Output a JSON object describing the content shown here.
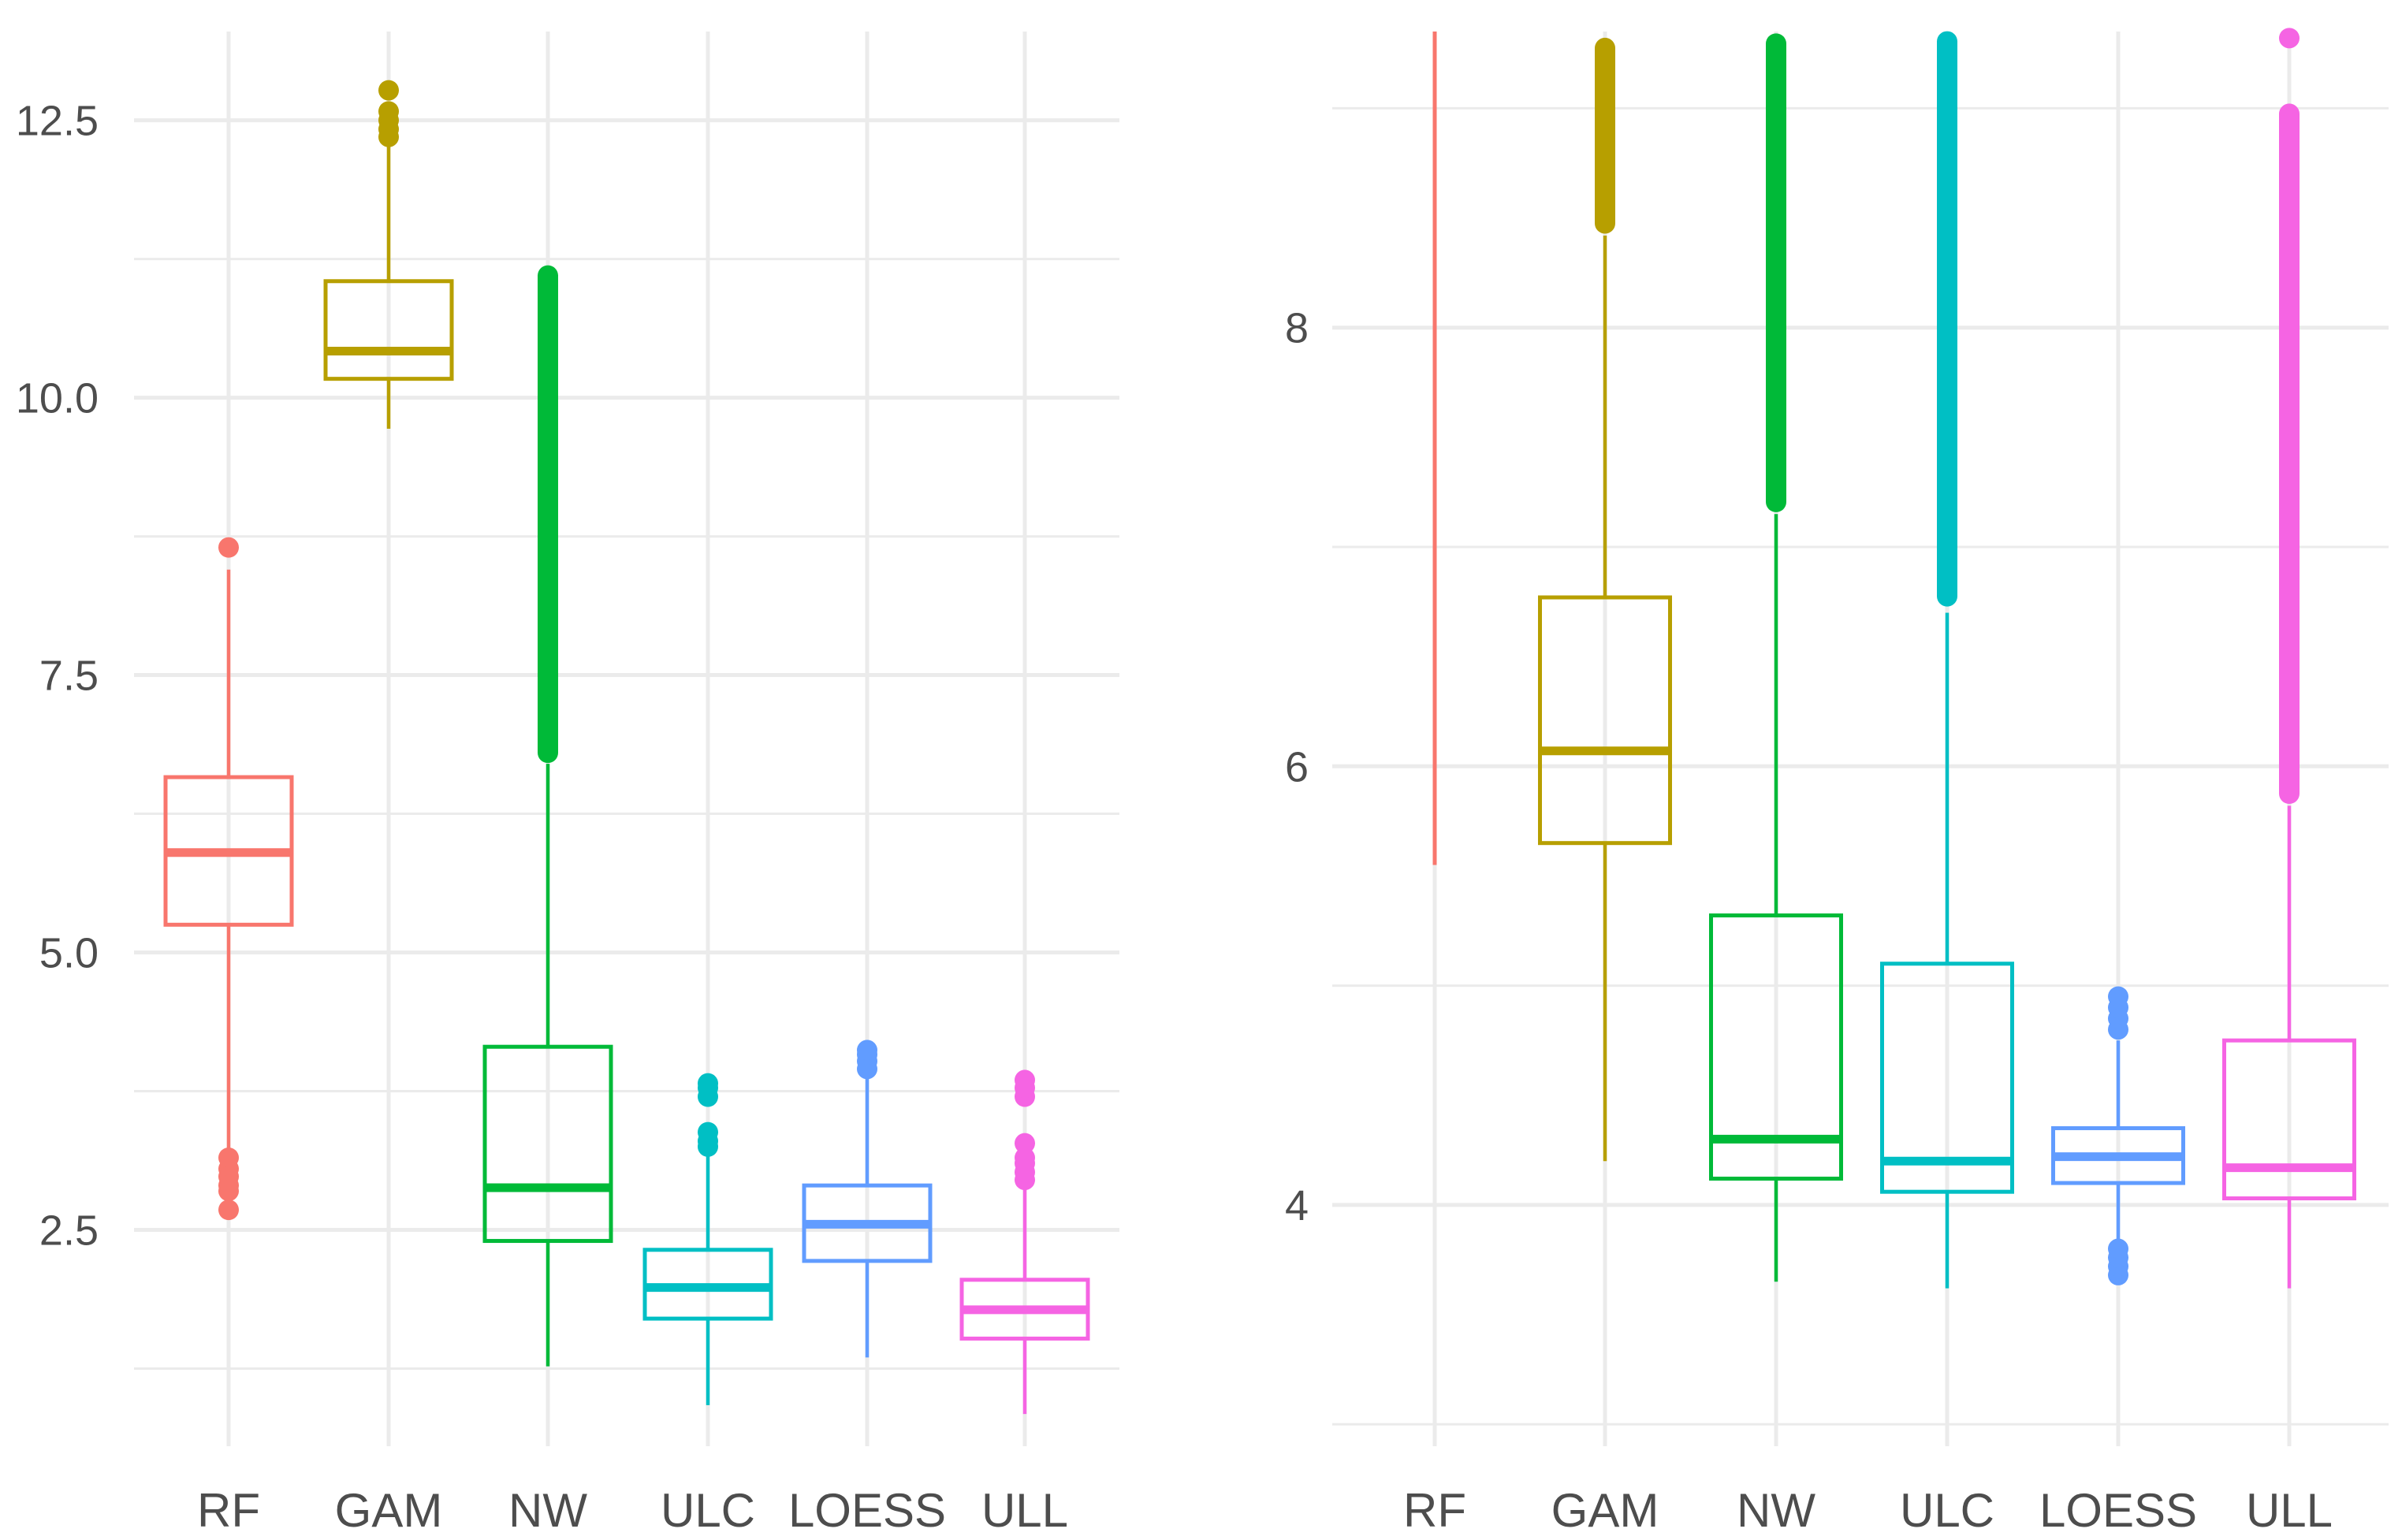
{
  "chart_data": [
    {
      "type": "boxplot",
      "panel": "left",
      "title": "",
      "xlabel": "",
      "ylabel": "",
      "categories": [
        "RF",
        "GAM",
        "NW",
        "ULC",
        "LOESS",
        "ULL"
      ],
      "colors": [
        "#F8766D",
        "#B79F00",
        "#00BA38",
        "#00BFC4",
        "#619CFF",
        "#F564E3"
      ],
      "ylim": [
        0.55,
        13.3
      ],
      "yticks": [
        2.5,
        5.0,
        7.5,
        10.0,
        12.5
      ],
      "ytick_labels": [
        "2.5",
        "5.0",
        "7.5",
        "10.0",
        "12.5"
      ],
      "y_minor_gridlines": [
        1.25,
        3.75,
        6.25,
        8.75,
        11.25
      ],
      "grid": true,
      "boxes": [
        {
          "name": "RF",
          "whisker_low": 3.2,
          "q1": 5.25,
          "median": 5.9,
          "q3": 6.58,
          "whisker_high": 8.45,
          "outliers": [
            8.65,
            3.15,
            3.05,
            2.98,
            2.9,
            2.85,
            2.68
          ]
        },
        {
          "name": "GAM",
          "whisker_low": 9.72,
          "q1": 10.17,
          "median": 10.42,
          "q3": 11.05,
          "whisker_high": 12.3,
          "outliers": [
            12.35,
            12.42,
            12.5,
            12.58,
            12.77
          ]
        },
        {
          "name": "NW",
          "whisker_low": 1.27,
          "q1": 2.4,
          "median": 2.88,
          "q3": 4.15,
          "whisker_high": 6.7,
          "outliers_range": [
            6.75,
            11.15
          ]
        },
        {
          "name": "ULC",
          "whisker_low": 0.92,
          "q1": 1.7,
          "median": 1.98,
          "q3": 2.32,
          "whisker_high": 3.2,
          "outliers": [
            3.25,
            3.3,
            3.38,
            3.7,
            3.78,
            3.82
          ]
        },
        {
          "name": "LOESS",
          "whisker_low": 1.35,
          "q1": 2.22,
          "median": 2.55,
          "q3": 2.9,
          "whisker_high": 3.9,
          "outliers": [
            3.95,
            4.02,
            4.08,
            4.12
          ]
        },
        {
          "name": "ULL",
          "whisker_low": 0.84,
          "q1": 1.52,
          "median": 1.78,
          "q3": 2.05,
          "whisker_high": 2.88,
          "outliers": [
            2.95,
            3.02,
            3.1,
            3.15,
            3.28,
            3.7,
            3.78,
            3.85
          ]
        }
      ]
    },
    {
      "type": "boxplot",
      "panel": "right",
      "title": "",
      "xlabel": "",
      "ylabel": "",
      "categories": [
        "RF",
        "GAM",
        "NW",
        "ULC",
        "LOESS",
        "ULL"
      ],
      "colors": [
        "#F8766D",
        "#B79F00",
        "#00BA38",
        "#00BFC4",
        "#619CFF",
        "#F564E3"
      ],
      "ylim": [
        2.9,
        9.35
      ],
      "yticks": [
        4,
        6,
        8
      ],
      "ytick_labels": [
        "4",
        "6",
        "8"
      ],
      "y_minor_gridlines": [
        3,
        5,
        7,
        9
      ],
      "grid": true,
      "boxes": [
        {
          "name": "RF",
          "whisker_low": 5.55,
          "whisker_high": 9.35,
          "no_box": true
        },
        {
          "name": "GAM",
          "whisker_low": 4.2,
          "q1": 5.65,
          "median": 6.07,
          "q3": 6.77,
          "whisker_high": 8.42,
          "outliers_range": [
            8.45,
            9.3
          ]
        },
        {
          "name": "NW",
          "whisker_low": 3.65,
          "q1": 4.12,
          "median": 4.3,
          "q3": 5.32,
          "whisker_high": 7.15,
          "outliers_range": [
            7.18,
            9.32
          ]
        },
        {
          "name": "ULC",
          "whisker_low": 3.62,
          "q1": 4.06,
          "median": 4.2,
          "q3": 5.1,
          "whisker_high": 6.7,
          "outliers_range": [
            6.75,
            9.33
          ]
        },
        {
          "name": "LOESS",
          "whisker_low": 3.72,
          "q1": 4.1,
          "median": 4.22,
          "q3": 4.35,
          "whisker_high": 4.75,
          "outliers": [
            3.68,
            3.72,
            3.76,
            3.8,
            4.8,
            4.85,
            4.9,
            4.95
          ]
        },
        {
          "name": "ULL",
          "whisker_low": 3.62,
          "q1": 4.03,
          "median": 4.17,
          "q3": 4.75,
          "whisker_high": 5.82,
          "outliers_range": [
            5.85,
            9.0
          ],
          "outliers": [
            9.32
          ]
        }
      ]
    }
  ]
}
